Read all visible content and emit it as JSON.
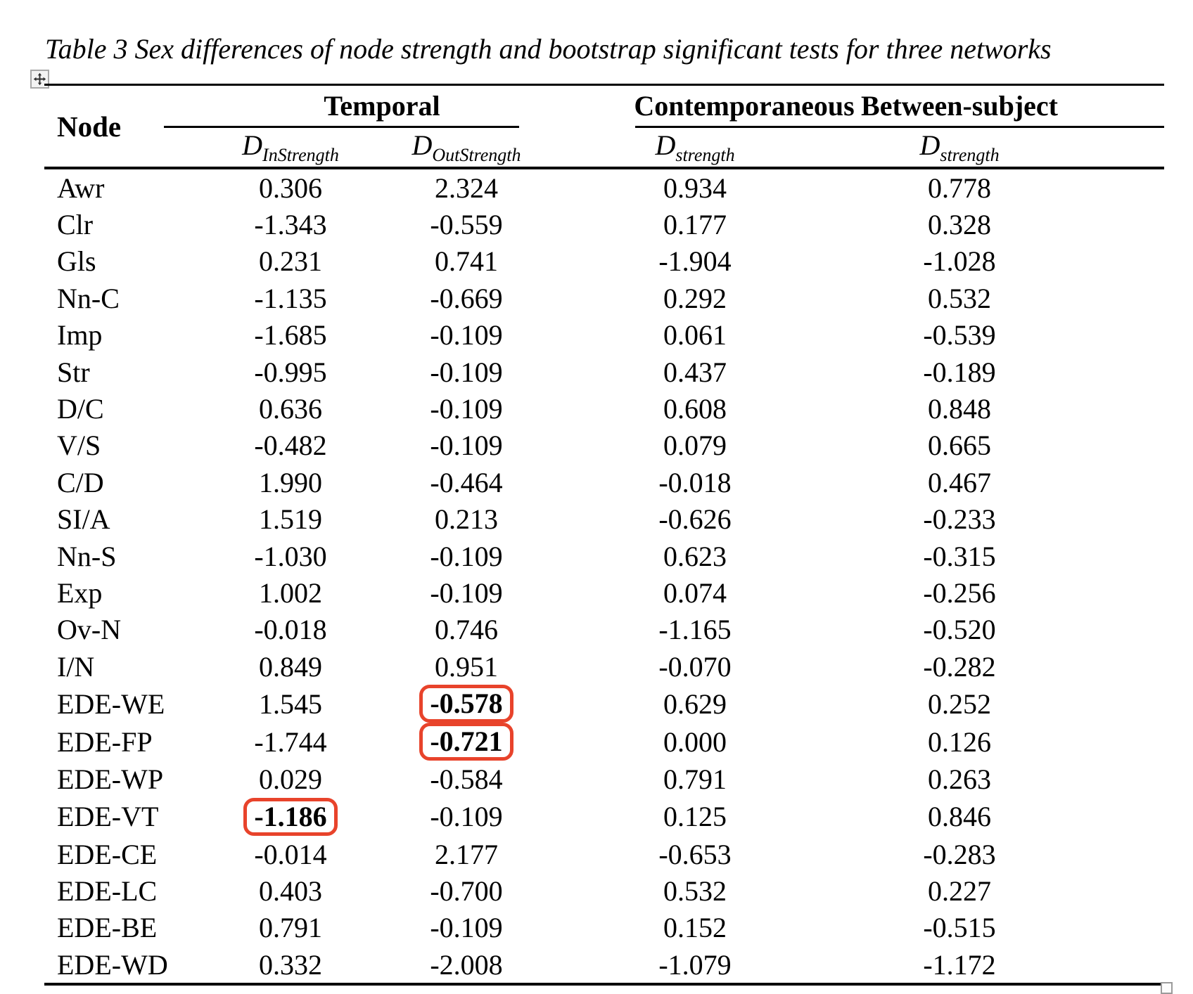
{
  "document": {
    "title": "Table 3 Sex differences of node strength and bootstrap significant tests for three networks"
  },
  "colors": {
    "text": "#000000",
    "rule_lines": "#000000",
    "highlight_ring": "#e8432b",
    "handle_border": "#a8a8a8",
    "handle_bg": "#f3f3f3"
  },
  "icons": {
    "move_handle": "move-cross-icon",
    "resize_handle": "resize-square-icon"
  },
  "table": {
    "header": {
      "node_label": "Node",
      "groups": [
        {
          "label": "Temporal",
          "colspan": 2
        },
        {
          "label": "Contemporaneous",
          "colspan": 1
        },
        {
          "label": "Between-subject",
          "colspan": 1
        }
      ],
      "measures": [
        {
          "base": "D",
          "sub": "InStrength"
        },
        {
          "base": "D",
          "sub": "OutStrength"
        },
        {
          "base": "D",
          "sub": "strength"
        },
        {
          "base": "D",
          "sub": "strength"
        }
      ]
    },
    "rows": [
      {
        "node": "Awr",
        "values": [
          "0.306",
          "2.324",
          "0.934",
          "0.778"
        ],
        "highlighted": []
      },
      {
        "node": "Clr",
        "values": [
          "-1.343",
          "-0.559",
          "0.177",
          "0.328"
        ],
        "highlighted": []
      },
      {
        "node": "Gls",
        "values": [
          "0.231",
          "0.741",
          "-1.904",
          "-1.028"
        ],
        "highlighted": []
      },
      {
        "node": "Nn-C",
        "values": [
          "-1.135",
          "-0.669",
          "0.292",
          "0.532"
        ],
        "highlighted": []
      },
      {
        "node": "Imp",
        "values": [
          "-1.685",
          "-0.109",
          "0.061",
          "-0.539"
        ],
        "highlighted": []
      },
      {
        "node": "Str",
        "values": [
          "-0.995",
          "-0.109",
          "0.437",
          "-0.189"
        ],
        "highlighted": []
      },
      {
        "node": "D/C",
        "values": [
          "0.636",
          "-0.109",
          "0.608",
          "0.848"
        ],
        "highlighted": []
      },
      {
        "node": "V/S",
        "values": [
          "-0.482",
          "-0.109",
          "0.079",
          "0.665"
        ],
        "highlighted": []
      },
      {
        "node": "C/D",
        "values": [
          "1.990",
          "-0.464",
          "-0.018",
          "0.467"
        ],
        "highlighted": []
      },
      {
        "node": "SI/A",
        "values": [
          "1.519",
          "0.213",
          "-0.626",
          "-0.233"
        ],
        "highlighted": []
      },
      {
        "node": "Nn-S",
        "values": [
          "-1.030",
          "-0.109",
          "0.623",
          "-0.315"
        ],
        "highlighted": []
      },
      {
        "node": "Exp",
        "values": [
          "1.002",
          "-0.109",
          "0.074",
          "-0.256"
        ],
        "highlighted": []
      },
      {
        "node": "Ov-N",
        "values": [
          "-0.018",
          "0.746",
          "-1.165",
          "-0.520"
        ],
        "highlighted": []
      },
      {
        "node": "I/N",
        "values": [
          "0.849",
          "0.951",
          "-0.070",
          "-0.282"
        ],
        "highlighted": []
      },
      {
        "node": "EDE-WE",
        "values": [
          "1.545",
          "-0.578",
          "0.629",
          "0.252"
        ],
        "highlighted": [
          1
        ]
      },
      {
        "node": "EDE-FP",
        "values": [
          "-1.744",
          "-0.721",
          "0.000",
          "0.126"
        ],
        "highlighted": [
          1
        ]
      },
      {
        "node": "EDE-WP",
        "values": [
          "0.029",
          "-0.584",
          "0.791",
          "0.263"
        ],
        "highlighted": []
      },
      {
        "node": "EDE-VT",
        "values": [
          "-1.186",
          "-0.109",
          "0.125",
          "0.846"
        ],
        "highlighted": [
          0
        ]
      },
      {
        "node": "EDE-CE",
        "values": [
          "-0.014",
          "2.177",
          "-0.653",
          "-0.283"
        ],
        "highlighted": []
      },
      {
        "node": "EDE-LC",
        "values": [
          "0.403",
          "-0.700",
          "0.532",
          "0.227"
        ],
        "highlighted": []
      },
      {
        "node": "EDE-BE",
        "values": [
          "0.791",
          "-0.109",
          "0.152",
          "-0.515"
        ],
        "highlighted": []
      },
      {
        "node": "EDE-WD",
        "values": [
          "0.332",
          "-2.008",
          "-1.079",
          "-1.172"
        ],
        "highlighted": []
      }
    ]
  }
}
